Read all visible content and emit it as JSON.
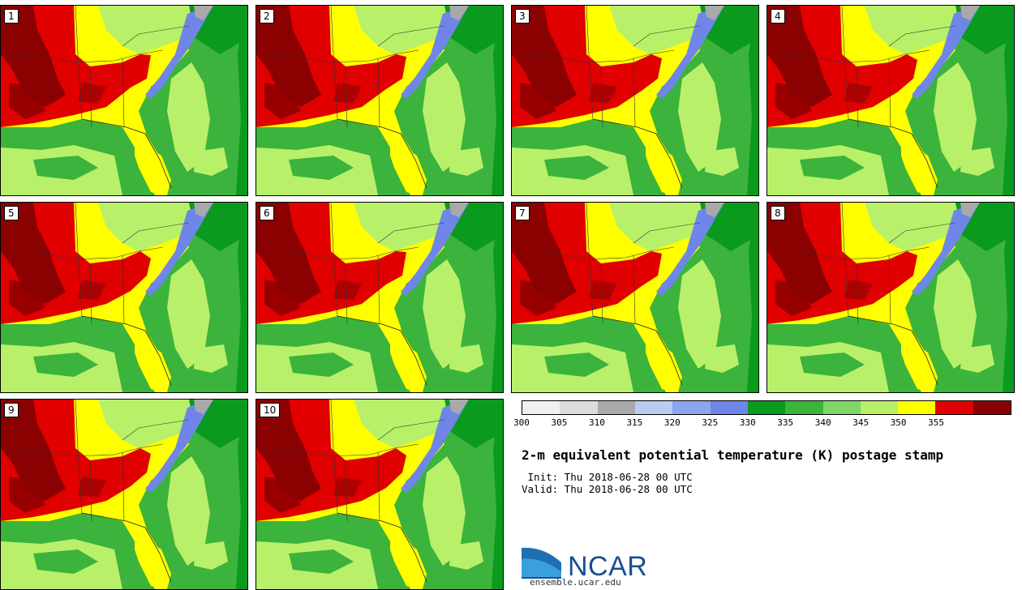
{
  "panels": [
    {
      "label": "1"
    },
    {
      "label": "2"
    },
    {
      "label": "3"
    },
    {
      "label": "4"
    },
    {
      "label": "5"
    },
    {
      "label": "6"
    },
    {
      "label": "7"
    },
    {
      "label": "8"
    },
    {
      "label": "9"
    },
    {
      "label": "10"
    }
  ],
  "colorbar": {
    "ticks": [
      "300",
      "305",
      "310",
      "315",
      "320",
      "325",
      "330",
      "335",
      "340",
      "345",
      "350",
      "355"
    ],
    "colors": [
      "#f0f0f0",
      "#dcdcdc",
      "#a9a9a9",
      "#b9ccf3",
      "#8aa6ef",
      "#6f86e8",
      "#0a9a1e",
      "#3bb33c",
      "#7fd46a",
      "#b8f06a",
      "#ffff00",
      "#e00000",
      "#8b0000"
    ]
  },
  "title": "2-m equivalent potential temperature (K) postage stamp",
  "init_line": " Init: Thu 2018-06-28 00 UTC",
  "valid_line": "Valid: Thu 2018-06-28 00 UTC",
  "logo": {
    "text": "NCAR",
    "url": "ensemble.ucar.edu"
  }
}
